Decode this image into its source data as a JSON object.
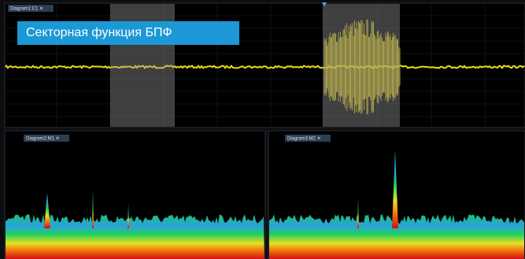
{
  "banner": "Секторная функция БПФ",
  "panels": [
    {
      "tab": "Diagram1:C1 ✕"
    },
    {
      "tab": "Diagram2:M1 ✕"
    },
    {
      "tab": "Diagram3:M2 ✕"
    }
  ]
}
